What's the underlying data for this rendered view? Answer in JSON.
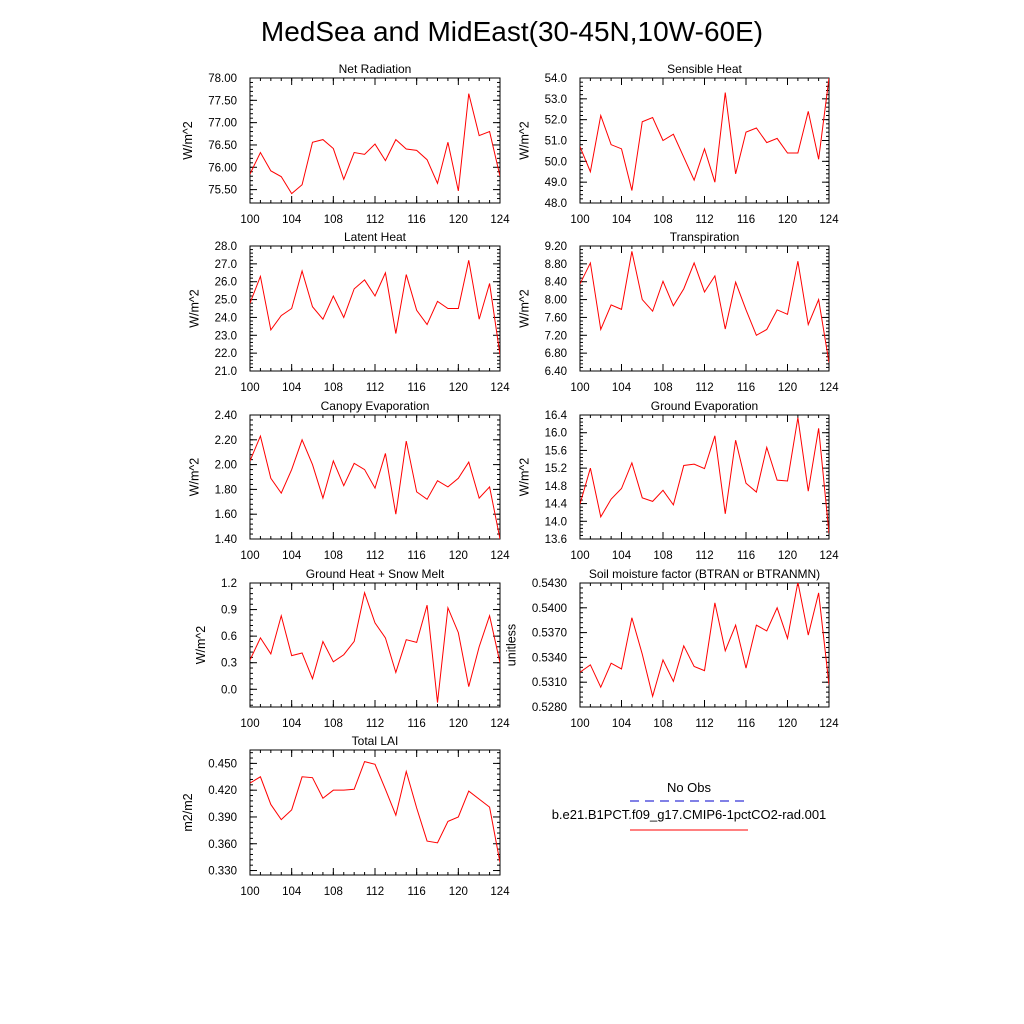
{
  "title": "MedSea and MidEast(30-45N,10W-60E)",
  "colors": {
    "series": "#ff0000",
    "obs": "#0000cc",
    "axis": "#000000"
  },
  "legend": {
    "obs_label": "No Obs",
    "model_label": "b.e21.B1PCT.f09_g17.CMIP6-1pctCO2-rad.001"
  },
  "chart_data": [
    {
      "type": "line",
      "title": "Net Radiation",
      "ylabel": "W/m^2",
      "xlim": [
        100,
        124
      ],
      "ylim": [
        75.2,
        78.0
      ],
      "xticks": [
        100,
        104,
        108,
        112,
        116,
        120,
        124
      ],
      "xtick_labels": [
        "100",
        "104",
        "108",
        "112",
        "116",
        "120",
        "124"
      ],
      "yticks": [
        75.5,
        76.0,
        76.5,
        77.0,
        77.5,
        78.0
      ],
      "ytick_labels": [
        "75.50",
        "76.00",
        "76.50",
        "77.00",
        "77.50",
        "78.00"
      ],
      "x": [
        100,
        101,
        102,
        103,
        104,
        105,
        106,
        107,
        108,
        109,
        110,
        111,
        112,
        113,
        114,
        115,
        116,
        117,
        118,
        119,
        120,
        121,
        122,
        123,
        124
      ],
      "values": [
        75.85,
        76.33,
        75.92,
        75.79,
        75.41,
        75.61,
        76.56,
        76.62,
        76.42,
        75.73,
        76.33,
        76.29,
        76.52,
        76.15,
        76.62,
        76.41,
        76.38,
        76.17,
        75.64,
        76.56,
        75.47,
        77.65,
        76.71,
        76.8,
        75.8
      ]
    },
    {
      "type": "line",
      "title": "Sensible Heat",
      "ylabel": "W/m^2",
      "xlim": [
        100,
        124
      ],
      "ylim": [
        48.0,
        54.0
      ],
      "xticks": [
        100,
        104,
        108,
        112,
        116,
        120,
        124
      ],
      "xtick_labels": [
        "100",
        "104",
        "108",
        "112",
        "116",
        "120",
        "124"
      ],
      "yticks": [
        48.0,
        49.0,
        50.0,
        51.0,
        52.0,
        53.0,
        54.0
      ],
      "ytick_labels": [
        "48.0",
        "49.0",
        "50.0",
        "51.0",
        "52.0",
        "53.0",
        "54.0"
      ],
      "x": [
        100,
        101,
        102,
        103,
        104,
        105,
        106,
        107,
        108,
        109,
        110,
        111,
        112,
        113,
        114,
        115,
        116,
        117,
        118,
        119,
        120,
        121,
        122,
        123,
        124
      ],
      "values": [
        50.7,
        49.5,
        52.2,
        50.8,
        50.6,
        48.6,
        51.9,
        52.1,
        51.0,
        51.3,
        50.2,
        49.1,
        50.6,
        49.0,
        53.3,
        49.4,
        51.4,
        51.6,
        50.9,
        51.1,
        50.4,
        50.4,
        52.4,
        50.1,
        54.0
      ]
    },
    {
      "type": "line",
      "title": "Latent Heat",
      "ylabel": "W/m^2",
      "xlim": [
        100,
        124
      ],
      "ylim": [
        21.0,
        28.0
      ],
      "xticks": [
        100,
        104,
        108,
        112,
        116,
        120,
        124
      ],
      "xtick_labels": [
        "100",
        "104",
        "108",
        "112",
        "116",
        "120",
        "124"
      ],
      "yticks": [
        21.0,
        22.0,
        23.0,
        24.0,
        25.0,
        26.0,
        27.0,
        28.0
      ],
      "ytick_labels": [
        "21.0",
        "22.0",
        "23.0",
        "24.0",
        "25.0",
        "26.0",
        "27.0",
        "28.0"
      ],
      "x": [
        100,
        101,
        102,
        103,
        104,
        105,
        106,
        107,
        108,
        109,
        110,
        111,
        112,
        113,
        114,
        115,
        116,
        117,
        118,
        119,
        120,
        121,
        122,
        123,
        124
      ],
      "values": [
        24.8,
        26.3,
        23.3,
        24.1,
        24.5,
        26.6,
        24.6,
        23.9,
        25.2,
        24.0,
        25.6,
        26.1,
        25.2,
        26.5,
        23.1,
        26.4,
        24.4,
        23.6,
        24.9,
        24.5,
        24.5,
        27.2,
        23.9,
        25.9,
        21.9
      ]
    },
    {
      "type": "line",
      "title": "Transpiration",
      "ylabel": "W/m^2",
      "xlim": [
        100,
        124
      ],
      "ylim": [
        6.4,
        9.2
      ],
      "xticks": [
        100,
        104,
        108,
        112,
        116,
        120,
        124
      ],
      "xtick_labels": [
        "100",
        "104",
        "108",
        "112",
        "116",
        "120",
        "124"
      ],
      "yticks": [
        6.4,
        6.8,
        7.2,
        7.6,
        8.0,
        8.4,
        8.8,
        9.2
      ],
      "ytick_labels": [
        "6.40",
        "6.80",
        "7.20",
        "7.60",
        "8.00",
        "8.40",
        "8.80",
        "9.20"
      ],
      "x": [
        100,
        101,
        102,
        103,
        104,
        105,
        106,
        107,
        108,
        109,
        110,
        111,
        112,
        113,
        114,
        115,
        116,
        117,
        118,
        119,
        120,
        121,
        122,
        123,
        124
      ],
      "values": [
        8.35,
        8.82,
        7.33,
        7.88,
        7.78,
        9.08,
        8.0,
        7.74,
        8.41,
        7.86,
        8.24,
        8.82,
        8.17,
        8.53,
        7.34,
        8.39,
        7.77,
        7.2,
        7.33,
        7.77,
        7.67,
        8.86,
        7.44,
        8.0,
        6.59
      ]
    },
    {
      "type": "line",
      "title": "Canopy Evaporation",
      "ylabel": "W/m^2",
      "xlim": [
        100,
        124
      ],
      "ylim": [
        1.4,
        2.4
      ],
      "xticks": [
        100,
        104,
        108,
        112,
        116,
        120,
        124
      ],
      "xtick_labels": [
        "100",
        "104",
        "108",
        "112",
        "116",
        "120",
        "124"
      ],
      "yticks": [
        1.4,
        1.6,
        1.8,
        2.0,
        2.2,
        2.4
      ],
      "ytick_labels": [
        "1.40",
        "1.60",
        "1.80",
        "2.00",
        "2.20",
        "2.40"
      ],
      "x": [
        100,
        101,
        102,
        103,
        104,
        105,
        106,
        107,
        108,
        109,
        110,
        111,
        112,
        113,
        114,
        115,
        116,
        117,
        118,
        119,
        120,
        121,
        122,
        123,
        124
      ],
      "values": [
        2.03,
        2.23,
        1.89,
        1.77,
        1.96,
        2.2,
        2.0,
        1.73,
        2.03,
        1.83,
        2.01,
        1.96,
        1.81,
        2.09,
        1.6,
        2.19,
        1.78,
        1.72,
        1.87,
        1.82,
        1.89,
        2.02,
        1.73,
        1.82,
        1.4
      ]
    },
    {
      "type": "line",
      "title": "Ground Evaporation",
      "ylabel": "W/m^2",
      "xlim": [
        100,
        124
      ],
      "ylim": [
        13.6,
        16.4
      ],
      "xticks": [
        100,
        104,
        108,
        112,
        116,
        120,
        124
      ],
      "xtick_labels": [
        "100",
        "104",
        "108",
        "112",
        "116",
        "120",
        "124"
      ],
      "yticks": [
        13.6,
        14.0,
        14.4,
        14.8,
        15.2,
        15.6,
        16.0,
        16.4
      ],
      "ytick_labels": [
        "13.6",
        "14.0",
        "14.4",
        "14.8",
        "15.2",
        "15.6",
        "16.0",
        "16.4"
      ],
      "x": [
        100,
        101,
        102,
        103,
        104,
        105,
        106,
        107,
        108,
        109,
        110,
        111,
        112,
        113,
        114,
        115,
        116,
        117,
        118,
        119,
        120,
        121,
        122,
        123,
        124
      ],
      "values": [
        14.39,
        15.2,
        14.1,
        14.5,
        14.74,
        15.32,
        14.53,
        14.45,
        14.7,
        14.37,
        15.26,
        15.29,
        15.19,
        15.93,
        14.17,
        15.83,
        14.86,
        14.66,
        15.67,
        14.93,
        14.91,
        16.34,
        14.68,
        16.1,
        13.73
      ]
    },
    {
      "type": "line",
      "title": "Ground Heat + Snow Melt",
      "ylabel": "W/m^2",
      "xlim": [
        100,
        124
      ],
      "ylim": [
        -0.2,
        1.2
      ],
      "xticks": [
        100,
        104,
        108,
        112,
        116,
        120,
        124
      ],
      "xtick_labels": [
        "100",
        "104",
        "108",
        "112",
        "116",
        "120",
        "124"
      ],
      "yticks": [
        0.0,
        0.3,
        0.6,
        0.9,
        1.2
      ],
      "ytick_labels": [
        "0.0",
        "0.3",
        "0.6",
        "0.9",
        "1.2"
      ],
      "x": [
        100,
        101,
        102,
        103,
        104,
        105,
        106,
        107,
        108,
        109,
        110,
        111,
        112,
        113,
        114,
        115,
        116,
        117,
        118,
        119,
        120,
        121,
        122,
        123,
        124
      ],
      "values": [
        0.33,
        0.58,
        0.4,
        0.83,
        0.38,
        0.41,
        0.12,
        0.54,
        0.31,
        0.39,
        0.54,
        1.09,
        0.75,
        0.58,
        0.19,
        0.56,
        0.53,
        0.95,
        -0.15,
        0.92,
        0.64,
        0.03,
        0.48,
        0.83,
        0.3
      ]
    },
    {
      "type": "line",
      "title": "Soil moisture factor (BTRAN or BTRANMN)",
      "ylabel": "unitless",
      "xlim": [
        100,
        124
      ],
      "ylim": [
        0.528,
        0.543
      ],
      "xticks": [
        100,
        104,
        108,
        112,
        116,
        120,
        124
      ],
      "xtick_labels": [
        "100",
        "104",
        "108",
        "112",
        "116",
        "120",
        "124"
      ],
      "yticks": [
        0.528,
        0.531,
        0.534,
        0.537,
        0.54,
        0.543
      ],
      "ytick_labels": [
        "0.5280",
        "0.5310",
        "0.5340",
        "0.5370",
        "0.5400",
        "0.5430"
      ],
      "x": [
        100,
        101,
        102,
        103,
        104,
        105,
        106,
        107,
        108,
        109,
        110,
        111,
        112,
        113,
        114,
        115,
        116,
        117,
        118,
        119,
        120,
        121,
        122,
        123,
        124
      ],
      "values": [
        0.5322,
        0.5331,
        0.5304,
        0.5333,
        0.5326,
        0.5388,
        0.5344,
        0.5293,
        0.5337,
        0.5311,
        0.5354,
        0.5329,
        0.5324,
        0.5406,
        0.5348,
        0.5379,
        0.5327,
        0.5379,
        0.5372,
        0.54,
        0.5363,
        0.5431,
        0.5367,
        0.5418,
        0.5307
      ]
    },
    {
      "type": "line",
      "title": "Total LAI",
      "ylabel": "m2/m2",
      "xlim": [
        100,
        124
      ],
      "ylim": [
        0.325,
        0.465
      ],
      "xticks": [
        100,
        104,
        108,
        112,
        116,
        120,
        124
      ],
      "xtick_labels": [
        "100",
        "104",
        "108",
        "112",
        "116",
        "120",
        "124"
      ],
      "yticks": [
        0.33,
        0.36,
        0.39,
        0.42,
        0.45
      ],
      "ytick_labels": [
        "0.330",
        "0.360",
        "0.390",
        "0.420",
        "0.450"
      ],
      "x": [
        100,
        101,
        102,
        103,
        104,
        105,
        106,
        107,
        108,
        109,
        110,
        111,
        112,
        113,
        114,
        115,
        116,
        117,
        118,
        119,
        120,
        121,
        122,
        123,
        124
      ],
      "values": [
        0.428,
        0.435,
        0.404,
        0.387,
        0.398,
        0.435,
        0.434,
        0.411,
        0.42,
        0.42,
        0.421,
        0.452,
        0.449,
        0.421,
        0.392,
        0.441,
        0.4,
        0.363,
        0.361,
        0.385,
        0.39,
        0.419,
        0.41,
        0.401,
        0.339
      ]
    }
  ]
}
